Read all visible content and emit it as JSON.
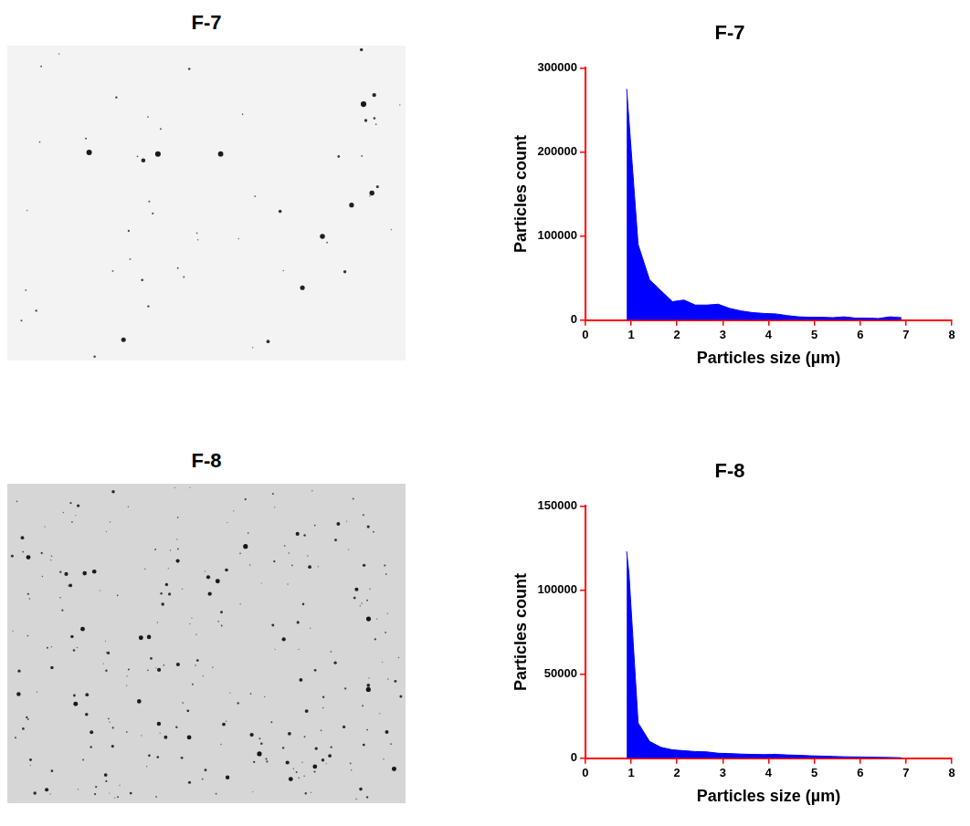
{
  "images": [
    {
      "title": "F-7"
    },
    {
      "title": "F-8"
    }
  ],
  "chart_data": [
    {
      "type": "area",
      "title": "F-7",
      "x_label": "Particles size (µm)",
      "y_label": "Particles count",
      "x": [
        0.9,
        1.15,
        1.4,
        1.65,
        1.9,
        2.15,
        2.4,
        2.65,
        2.9,
        3.15,
        3.4,
        3.65,
        3.9,
        4.15,
        4.4,
        4.65,
        4.9,
        5.15,
        5.4,
        5.65,
        5.9,
        6.15,
        6.4,
        6.65,
        6.9
      ],
      "values": [
        275000,
        90000,
        48000,
        35000,
        22000,
        24000,
        18000,
        18000,
        19000,
        14000,
        11000,
        9000,
        8000,
        7500,
        5500,
        4000,
        3500,
        3500,
        3000,
        4000,
        2500,
        2500,
        2000,
        4000,
        3000
      ],
      "color": "#0000ff",
      "xlim": [
        0,
        8
      ],
      "xticks": [
        0,
        1,
        2,
        3,
        4,
        5,
        6,
        7,
        8
      ],
      "ylim": [
        0,
        300000
      ],
      "yticks": [
        0,
        100000,
        200000,
        300000
      ],
      "grid": false
    },
    {
      "type": "area",
      "title": "F-8",
      "x_label": "Particles size (µm)",
      "y_label": "Particles count",
      "x": [
        0.9,
        0.95,
        1.15,
        1.4,
        1.65,
        1.9,
        2.15,
        2.4,
        2.65,
        2.9,
        3.15,
        3.4,
        3.65,
        3.9,
        4.15,
        4.4,
        4.65,
        4.9,
        5.15,
        5.4,
        5.65,
        5.9,
        6.15,
        6.4,
        6.65,
        6.9
      ],
      "values": [
        123000,
        110000,
        21000,
        10000,
        6500,
        5000,
        4500,
        4000,
        3800,
        3000,
        2800,
        2500,
        2300,
        2200,
        2300,
        2000,
        1800,
        1500,
        1300,
        1100,
        900,
        800,
        700,
        600,
        500,
        300
      ],
      "color": "#0000ff",
      "xlim": [
        0,
        8
      ],
      "xticks": [
        0,
        1,
        2,
        3,
        4,
        5,
        6,
        7,
        8
      ],
      "ylim": [
        0,
        150000
      ],
      "yticks": [
        0,
        50000,
        100000,
        150000
      ],
      "grid": false
    }
  ]
}
